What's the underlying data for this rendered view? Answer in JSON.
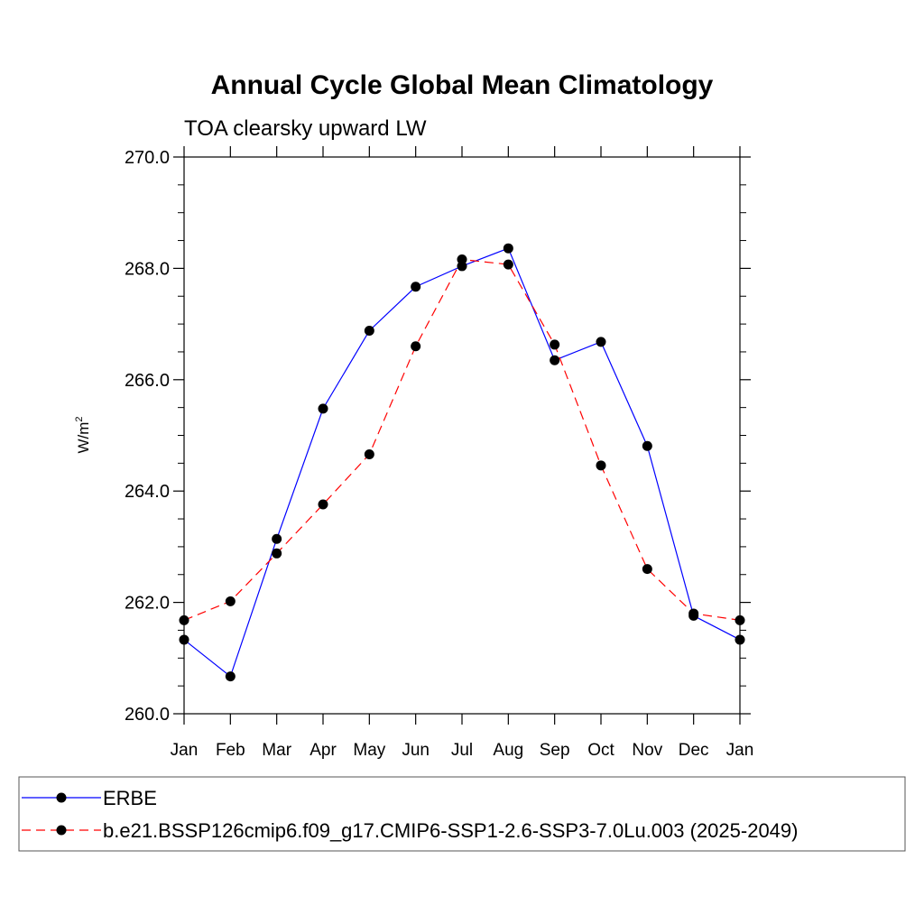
{
  "chart_data": {
    "type": "line",
    "title": "Annual Cycle Global Mean Climatology",
    "subtitle": "TOA clearsky upward LW",
    "ylabel": "W/m",
    "ylabel_superscript": "2",
    "xlabel": "",
    "ylim": [
      260,
      270
    ],
    "y_ticks": [
      "260.0",
      "262.0",
      "264.0",
      "266.0",
      "268.0",
      "270.0"
    ],
    "categories": [
      "Jan",
      "Feb",
      "Mar",
      "Apr",
      "May",
      "Jun",
      "Jul",
      "Aug",
      "Sep",
      "Oct",
      "Nov",
      "Dec",
      "Jan"
    ],
    "grid": false,
    "legend_position": "bottom",
    "series": [
      {
        "name": "ERBE",
        "color": "#0000ff",
        "style": "solid",
        "values": [
          261.33,
          260.67,
          263.14,
          265.48,
          266.88,
          267.67,
          268.04,
          268.36,
          266.35,
          266.68,
          264.81,
          261.76,
          261.33
        ]
      },
      {
        "name": "b.e21.BSSP126cmip6.f09_g17.CMIP6-SSP1-2.6-SSP3-7.0Lu.003 (2025-2049)",
        "color": "#ff0000",
        "style": "dashed",
        "values": [
          261.68,
          262.02,
          262.88,
          263.76,
          264.66,
          266.6,
          268.16,
          268.07,
          266.63,
          264.46,
          262.6,
          261.8,
          261.68
        ]
      }
    ]
  }
}
